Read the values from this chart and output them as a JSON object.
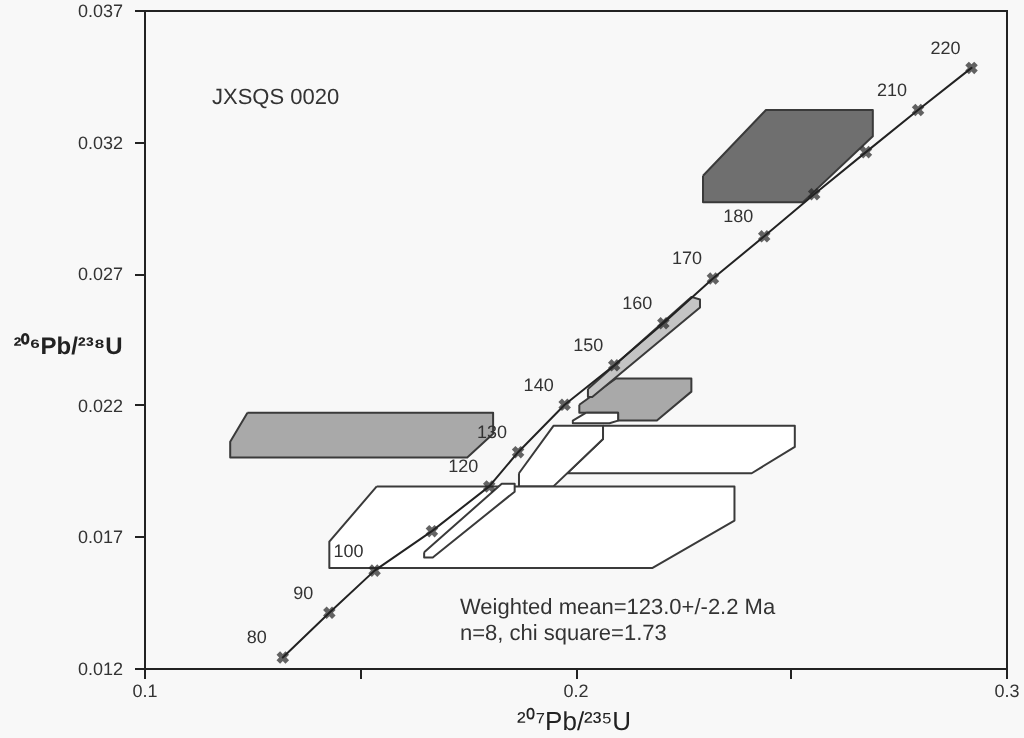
{
  "chart_data": {
    "type": "line",
    "xlabel": "²⁰⁷Pb/²³⁵U",
    "ylabel": "²⁰⁶Pb/²³⁸U",
    "xlim": [
      0.1,
      0.3
    ],
    "ylim": [
      0.012,
      0.037
    ],
    "xticks": [
      0.1,
      {
        "value": 0.15,
        "label": null
      },
      0.2,
      {
        "value": 0.25,
        "label": null
      },
      0.3
    ],
    "yticks": [
      0.012,
      0.017,
      0.022,
      0.027,
      0.032,
      0.037
    ],
    "grid": false,
    "series": [
      {
        "type": "area",
        "color": "#ffffff",
        "x": [
          0.2065,
          0.251,
          0.251,
          0.241,
          0.1982,
          0.2065
        ],
        "values": [
          0.0212,
          0.0212,
          0.0204,
          0.0194,
          0.0194,
          0.0207
        ]
      },
      {
        "type": "area",
        "color": "#ffffff",
        "x": [
          0.187,
          0.195,
          0.2065,
          0.2065,
          0.195,
          0.187
        ],
        "values": [
          0.0194,
          0.0212,
          0.0212,
          0.0207,
          0.0189,
          0.0189
        ]
      },
      {
        "type": "area",
        "color": "#ffffff",
        "x": [
          0.154,
          0.237,
          0.237,
          0.218,
          0.143,
          0.143
        ],
        "values": [
          0.0189,
          0.0189,
          0.0176,
          0.0158,
          0.0158,
          0.0168
        ]
      },
      {
        "type": "area",
        "color": "#ffffff",
        "x": [
          0.165,
          0.183,
          0.186,
          0.186,
          0.167,
          0.165
        ],
        "values": [
          0.0164,
          0.019,
          0.019,
          0.0187,
          0.0162,
          0.0162
        ]
      },
      {
        "type": "area",
        "color": "#a9a9a9",
        "x": [
          0.124,
          0.181,
          0.181,
          0.175,
          0.12,
          0.12
        ],
        "values": [
          0.0217,
          0.0217,
          0.0209,
          0.02,
          0.02,
          0.0206
        ]
      },
      {
        "type": "area",
        "color": "#a9a9a9",
        "x": [
          0.201,
          0.2095,
          0.227,
          0.227,
          0.219,
          0.21,
          0.21,
          0.201
        ],
        "values": [
          0.022,
          0.023,
          0.023,
          0.0225,
          0.0214,
          0.0214,
          0.0217,
          0.0217
        ]
      },
      {
        "type": "area",
        "color": "#ffffff",
        "x": [
          0.2026,
          0.21,
          0.21,
          0.208,
          0.1995,
          0.1995
        ],
        "values": [
          0.0217,
          0.0217,
          0.0214,
          0.0213,
          0.0213,
          0.0214
        ]
      },
      {
        "type": "area",
        "color": "#c4c4c4",
        "x": [
          0.203,
          0.227,
          0.229,
          0.229,
          0.204,
          0.203
        ],
        "values": [
          0.0226,
          0.0261,
          0.026,
          0.0257,
          0.0223,
          0.0223
        ]
      },
      {
        "type": "area",
        "color": "#6f6f6f",
        "x": [
          0.2297,
          0.2443,
          0.2691,
          0.2691,
          0.2529,
          0.2297
        ],
        "values": [
          0.0307,
          0.0332,
          0.0332,
          0.0322,
          0.0297,
          0.0297
        ]
      },
      {
        "color": "#222222",
        "marker": "cross",
        "x": [
          0.1322,
          0.143,
          0.1535,
          0.1668,
          0.1801,
          0.1868,
          0.1976,
          0.2091,
          0.2205,
          0.232,
          0.2439,
          0.2555,
          0.2675,
          0.2796,
          0.292
        ],
        "values": [
          0.0124,
          0.0141,
          0.0157,
          0.0172,
          0.0189,
          0.0202,
          0.022,
          0.0235,
          0.0251,
          0.0268,
          0.0284,
          0.03,
          0.0316,
          0.0332,
          0.0348
        ]
      }
    ],
    "annotations": [
      "JXSQS 0020",
      "Weighted mean=123.0+/-2.2 Ma",
      "n=8, chi square=1.73",
      {
        "text": "80",
        "x": 0.1322,
        "y": 0.0124
      },
      {
        "text": "90",
        "x": 0.143,
        "y": 0.0141
      },
      {
        "text": "100",
        "x": 0.1535,
        "y": 0.0157
      },
      {
        "text": "120",
        "x": 0.1801,
        "y": 0.0189
      },
      {
        "text": "130",
        "x": 0.1868,
        "y": 0.0202
      },
      {
        "text": "140",
        "x": 0.1976,
        "y": 0.022
      },
      {
        "text": "150",
        "x": 0.2091,
        "y": 0.0235
      },
      {
        "text": "160",
        "x": 0.2205,
        "y": 0.0251
      },
      {
        "text": "170",
        "x": 0.232,
        "y": 0.0268
      },
      {
        "text": "180",
        "x": 0.2439,
        "y": 0.0284
      },
      {
        "text": "210",
        "x": 0.2796,
        "y": 0.0332
      },
      {
        "text": "220",
        "x": 0.292,
        "y": 0.0348
      }
    ]
  }
}
